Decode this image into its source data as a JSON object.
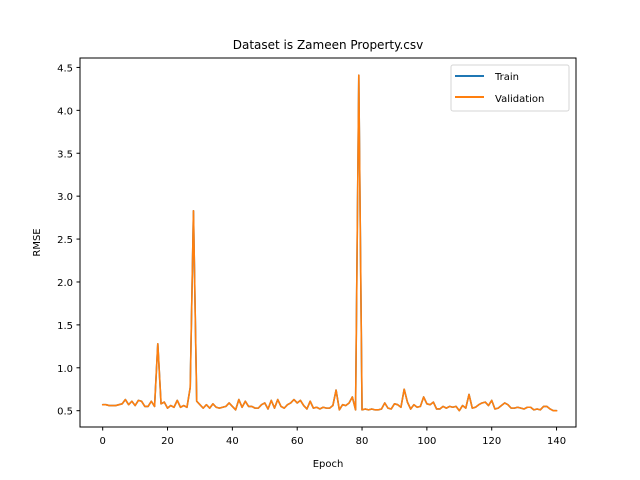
{
  "chart_data": {
    "type": "line",
    "title": "Dataset is Zameen Property.csv",
    "xlabel": "Epoch",
    "ylabel": "RMSE",
    "xlim": [
      -7,
      146
    ],
    "ylim": [
      0.31,
      4.61
    ],
    "xticks": [
      0,
      20,
      40,
      60,
      80,
      100,
      120,
      140
    ],
    "yticks": [
      0.5,
      1.0,
      1.5,
      2.0,
      2.5,
      3.0,
      3.5,
      4.0,
      4.5
    ],
    "ytick_labels": [
      "0.5",
      "1.0",
      "1.5",
      "2.0",
      "2.5",
      "3.0",
      "3.5",
      "4.0",
      "4.5"
    ],
    "grid": false,
    "legend_position": "top-right",
    "series": [
      {
        "name": "Train",
        "color": "#1f77b4",
        "values": [
          0.57,
          0.57,
          0.56,
          0.56,
          0.56,
          0.57,
          0.58,
          0.63,
          0.57,
          0.61,
          0.56,
          0.62,
          0.61,
          0.55,
          0.55,
          0.61,
          0.55,
          1.28,
          0.58,
          0.6,
          0.53,
          0.56,
          0.54,
          0.62,
          0.54,
          0.56,
          0.54,
          0.77,
          2.83,
          0.61,
          0.57,
          0.53,
          0.57,
          0.53,
          0.58,
          0.54,
          0.53,
          0.54,
          0.55,
          0.59,
          0.55,
          0.51,
          0.63,
          0.54,
          0.61,
          0.55,
          0.55,
          0.53,
          0.53,
          0.57,
          0.59,
          0.52,
          0.62,
          0.53,
          0.63,
          0.55,
          0.53,
          0.57,
          0.59,
          0.63,
          0.59,
          0.62,
          0.56,
          0.52,
          0.61,
          0.53,
          0.54,
          0.52,
          0.54,
          0.53,
          0.53,
          0.56,
          0.74,
          0.51,
          0.57,
          0.56,
          0.59,
          0.66,
          0.51,
          4.41,
          0.51,
          0.52,
          0.51,
          0.52,
          0.51,
          0.51,
          0.52,
          0.59,
          0.53,
          0.52,
          0.58,
          0.57,
          0.54,
          0.75,
          0.6,
          0.52,
          0.57,
          0.54,
          0.55,
          0.66,
          0.58,
          0.57,
          0.6,
          0.52,
          0.52,
          0.55,
          0.53,
          0.55,
          0.54,
          0.55,
          0.5,
          0.56,
          0.53,
          0.69,
          0.53,
          0.54,
          0.57,
          0.59,
          0.6,
          0.56,
          0.62,
          0.52,
          0.53,
          0.56,
          0.59,
          0.57,
          0.53,
          0.53,
          0.54,
          0.53,
          0.52,
          0.54,
          0.54,
          0.51,
          0.52,
          0.51,
          0.55,
          0.55,
          0.52,
          0.5,
          0.5
        ]
      },
      {
        "name": "Validation",
        "color": "#ff7f0e",
        "values": [
          0.57,
          0.57,
          0.56,
          0.56,
          0.56,
          0.57,
          0.58,
          0.63,
          0.57,
          0.61,
          0.56,
          0.62,
          0.61,
          0.55,
          0.55,
          0.61,
          0.55,
          1.28,
          0.58,
          0.6,
          0.53,
          0.56,
          0.54,
          0.62,
          0.54,
          0.56,
          0.54,
          0.77,
          2.83,
          0.61,
          0.57,
          0.53,
          0.57,
          0.53,
          0.58,
          0.54,
          0.53,
          0.54,
          0.55,
          0.59,
          0.55,
          0.51,
          0.63,
          0.54,
          0.61,
          0.55,
          0.55,
          0.53,
          0.53,
          0.57,
          0.59,
          0.52,
          0.62,
          0.53,
          0.63,
          0.55,
          0.53,
          0.57,
          0.59,
          0.63,
          0.59,
          0.62,
          0.56,
          0.52,
          0.61,
          0.53,
          0.54,
          0.52,
          0.54,
          0.53,
          0.53,
          0.56,
          0.74,
          0.51,
          0.57,
          0.56,
          0.59,
          0.66,
          0.51,
          4.41,
          0.51,
          0.52,
          0.51,
          0.52,
          0.51,
          0.51,
          0.52,
          0.59,
          0.53,
          0.52,
          0.58,
          0.57,
          0.54,
          0.75,
          0.6,
          0.52,
          0.57,
          0.54,
          0.55,
          0.66,
          0.58,
          0.57,
          0.6,
          0.52,
          0.52,
          0.55,
          0.53,
          0.55,
          0.54,
          0.55,
          0.5,
          0.56,
          0.53,
          0.69,
          0.53,
          0.54,
          0.57,
          0.59,
          0.6,
          0.56,
          0.62,
          0.52,
          0.53,
          0.56,
          0.59,
          0.57,
          0.53,
          0.53,
          0.54,
          0.53,
          0.52,
          0.54,
          0.54,
          0.51,
          0.52,
          0.51,
          0.55,
          0.55,
          0.52,
          0.5,
          0.5
        ]
      }
    ]
  }
}
